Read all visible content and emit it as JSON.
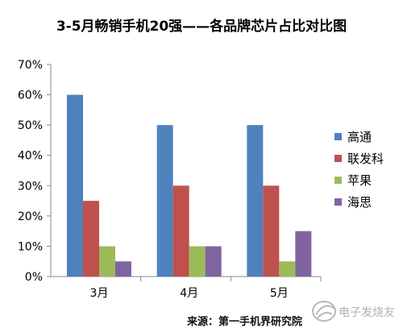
{
  "chart_data": {
    "type": "bar",
    "title": "3-5月畅销手机20强——各品牌芯片占比对比图",
    "categories": [
      "3月",
      "4月",
      "5月"
    ],
    "series": [
      {
        "name": "高通",
        "color": "#4F81BD",
        "values": [
          60,
          50,
          50
        ]
      },
      {
        "name": "联发科",
        "color": "#C0504D",
        "values": [
          25,
          30,
          30
        ]
      },
      {
        "name": "苹果",
        "color": "#9BBB59",
        "values": [
          10,
          10,
          5
        ]
      },
      {
        "name": "海思",
        "color": "#8064A2",
        "values": [
          5,
          10,
          15
        ]
      }
    ],
    "ylim": [
      0,
      70
    ],
    "yticks": [
      0,
      10,
      20,
      30,
      40,
      50,
      60,
      70
    ],
    "ytick_format": "percent",
    "grid": false,
    "legend": "right"
  },
  "source_note": "来源：第一手机界研究院",
  "watermark": {
    "text": "电子发烧友",
    "icon": "bird-logo-icon"
  }
}
